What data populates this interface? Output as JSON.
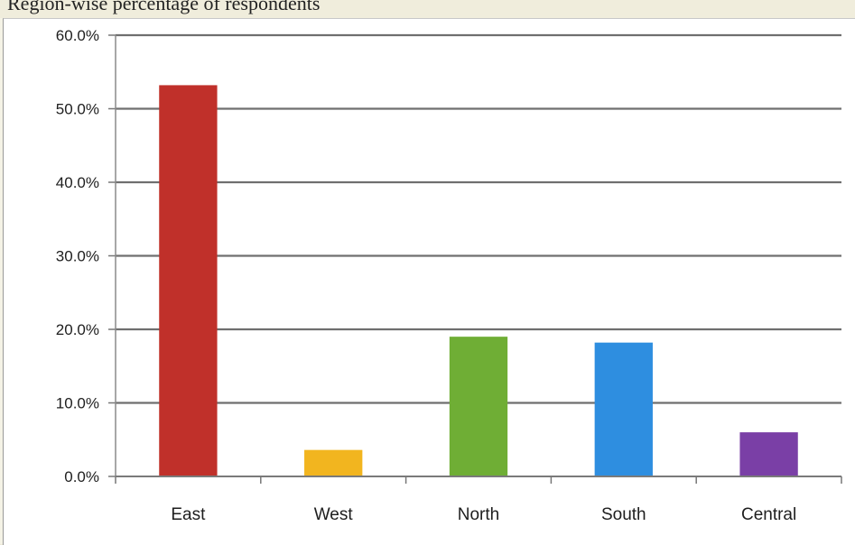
{
  "caption": {
    "text": "Region-wise percentage of respondents"
  },
  "chart_data": {
    "type": "bar",
    "title": "",
    "xlabel": "",
    "ylabel": "",
    "categories": [
      "East",
      "West",
      "North",
      "South",
      "Central"
    ],
    "values": [
      53.2,
      3.6,
      19.0,
      18.2,
      6.0
    ],
    "colors": [
      "#c0302a",
      "#f2b51f",
      "#6fae35",
      "#2e8ee0",
      "#7a3fa6"
    ],
    "ylim": [
      0,
      60
    ],
    "yticks": [
      0,
      10,
      20,
      30,
      40,
      50,
      60
    ],
    "ytick_labels": [
      "0.0%",
      "10.0%",
      "20.0%",
      "30.0%",
      "40.0%",
      "50.0%",
      "60.0%"
    ],
    "grid": true,
    "legend": "none"
  }
}
